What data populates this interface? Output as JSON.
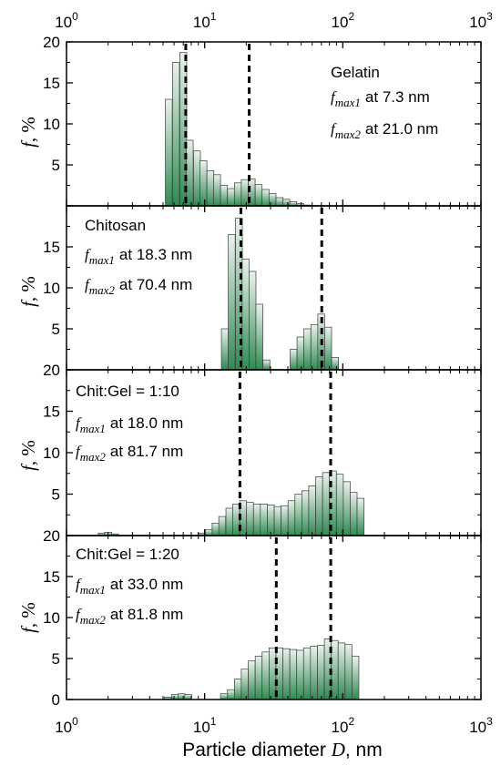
{
  "chart_data": {
    "type": "bar",
    "x_scale": "log",
    "xlim": [
      1,
      1000
    ],
    "ylim": [
      0,
      20
    ],
    "x_ticks": [
      1,
      10,
      100,
      1000
    ],
    "x_tick_labels": [
      {
        "base": "10",
        "exp": "0"
      },
      {
        "base": "10",
        "exp": "1"
      },
      {
        "base": "10",
        "exp": "2"
      },
      {
        "base": "10",
        "exp": "3"
      }
    ],
    "y_ticks": [
      0,
      5,
      10,
      15,
      20
    ],
    "y_tick_labels_top_panel": [
      "",
      "5",
      "10",
      "15",
      "20"
    ],
    "y_tick_labels_middle_panel": [
      "20",
      "5",
      "10",
      "15",
      ""
    ],
    "y_tick_labels_bottom_panel": [
      "0",
      "5",
      "10",
      "15",
      ""
    ],
    "ylabel": {
      "var": "f",
      "unit": ", %"
    },
    "xlabel": {
      "text": "Particle diameter ",
      "var": "D",
      "unit": ", nm"
    },
    "bin_ratio": 1.122,
    "colors": {
      "bar_light": "#eaf2ec",
      "bar_dark": "#2f8a52",
      "bar_stroke": "#3c3c3c",
      "axis": "#000000"
    },
    "panels": [
      {
        "title": "Gelatin",
        "peaks": [
          {
            "label": "max1",
            "value": "7.3 nm",
            "x": 7.3
          },
          {
            "label": "max2",
            "value": "21.0 nm",
            "x": 21.0
          }
        ],
        "bins": [
          {
            "x": 5.5,
            "y": 13.0
          },
          {
            "x": 6.2,
            "y": 17.5
          },
          {
            "x": 7.0,
            "y": 18.7
          },
          {
            "x": 7.8,
            "y": 8.0
          },
          {
            "x": 8.8,
            "y": 6.7
          },
          {
            "x": 9.8,
            "y": 5.5
          },
          {
            "x": 11.0,
            "y": 4.3
          },
          {
            "x": 12.3,
            "y": 3.8
          },
          {
            "x": 13.8,
            "y": 2.5
          },
          {
            "x": 15.5,
            "y": 2.1
          },
          {
            "x": 17.4,
            "y": 2.8
          },
          {
            "x": 19.5,
            "y": 3.2
          },
          {
            "x": 21.9,
            "y": 3.3
          },
          {
            "x": 24.6,
            "y": 2.6
          },
          {
            "x": 27.6,
            "y": 2.0
          },
          {
            "x": 31.0,
            "y": 1.5
          },
          {
            "x": 34.8,
            "y": 1.0
          },
          {
            "x": 39.0,
            "y": 0.8
          },
          {
            "x": 43.8,
            "y": 0.5
          },
          {
            "x": 49.1,
            "y": 0.3
          },
          {
            "x": 55.1,
            "y": 0.1
          }
        ]
      },
      {
        "title": "Chitosan",
        "peaks": [
          {
            "label": "max1",
            "value": "18.3 nm",
            "x": 18.3
          },
          {
            "label": "max2",
            "value": "70.4 nm",
            "x": 70.4
          }
        ],
        "bins": [
          {
            "x": 14.0,
            "y": 5.0
          },
          {
            "x": 15.7,
            "y": 16.5
          },
          {
            "x": 17.7,
            "y": 18.5
          },
          {
            "x": 19.8,
            "y": 13.5
          },
          {
            "x": 22.2,
            "y": 12.0
          },
          {
            "x": 24.9,
            "y": 8.0
          },
          {
            "x": 28.0,
            "y": 1.2
          },
          {
            "x": 44.0,
            "y": 2.5
          },
          {
            "x": 49.4,
            "y": 4.0
          },
          {
            "x": 55.4,
            "y": 5.0
          },
          {
            "x": 62.2,
            "y": 5.5
          },
          {
            "x": 69.8,
            "y": 6.8
          },
          {
            "x": 78.3,
            "y": 5.2
          },
          {
            "x": 87.9,
            "y": 1.5
          }
        ]
      },
      {
        "title": "Chit:Gel = 1:10",
        "peaks": [
          {
            "label": "max1",
            "value": "18.0 nm",
            "x": 18.0
          },
          {
            "label": "max2",
            "value": "81.7 nm",
            "x": 81.7
          }
        ],
        "bins": [
          {
            "x": 1.8,
            "y": 0.3
          },
          {
            "x": 2.0,
            "y": 0.4
          },
          {
            "x": 2.25,
            "y": 0.2
          },
          {
            "x": 9.5,
            "y": 0.3
          },
          {
            "x": 10.7,
            "y": 0.7
          },
          {
            "x": 12.0,
            "y": 1.5
          },
          {
            "x": 13.4,
            "y": 2.3
          },
          {
            "x": 15.1,
            "y": 3.3
          },
          {
            "x": 16.9,
            "y": 3.8
          },
          {
            "x": 19.0,
            "y": 4.2
          },
          {
            "x": 21.3,
            "y": 4.0
          },
          {
            "x": 23.9,
            "y": 3.8
          },
          {
            "x": 26.8,
            "y": 3.8
          },
          {
            "x": 30.1,
            "y": 3.7
          },
          {
            "x": 33.8,
            "y": 3.5
          },
          {
            "x": 37.9,
            "y": 3.6
          },
          {
            "x": 42.5,
            "y": 4.2
          },
          {
            "x": 47.7,
            "y": 5.0
          },
          {
            "x": 53.5,
            "y": 5.4
          },
          {
            "x": 60.0,
            "y": 6.0
          },
          {
            "x": 67.4,
            "y": 7.1
          },
          {
            "x": 75.6,
            "y": 7.6
          },
          {
            "x": 84.8,
            "y": 7.8
          },
          {
            "x": 95.2,
            "y": 7.4
          },
          {
            "x": 106.8,
            "y": 6.5
          },
          {
            "x": 119.8,
            "y": 5.2
          },
          {
            "x": 134.4,
            "y": 4.5
          }
        ]
      },
      {
        "title": "Chit:Gel = 1:20",
        "peaks": [
          {
            "label": "max1",
            "value": "33.0 nm",
            "x": 33.0
          },
          {
            "label": "max2",
            "value": "81.8 nm",
            "x": 81.8
          }
        ],
        "bins": [
          {
            "x": 5.4,
            "y": 0.3
          },
          {
            "x": 6.1,
            "y": 0.6
          },
          {
            "x": 6.8,
            "y": 0.7
          },
          {
            "x": 7.6,
            "y": 0.6
          },
          {
            "x": 13.8,
            "y": 0.7
          },
          {
            "x": 15.5,
            "y": 1.2
          },
          {
            "x": 17.4,
            "y": 2.5
          },
          {
            "x": 19.5,
            "y": 3.7
          },
          {
            "x": 21.9,
            "y": 4.7
          },
          {
            "x": 24.6,
            "y": 5.3
          },
          {
            "x": 27.6,
            "y": 5.8
          },
          {
            "x": 31.0,
            "y": 6.3
          },
          {
            "x": 34.8,
            "y": 6.3
          },
          {
            "x": 39.0,
            "y": 6.2
          },
          {
            "x": 43.8,
            "y": 6.1
          },
          {
            "x": 49.1,
            "y": 6.0
          },
          {
            "x": 55.1,
            "y": 6.3
          },
          {
            "x": 61.8,
            "y": 6.5
          },
          {
            "x": 69.4,
            "y": 6.6
          },
          {
            "x": 77.9,
            "y": 7.4
          },
          {
            "x": 87.4,
            "y": 7.2
          },
          {
            "x": 98.0,
            "y": 6.9
          },
          {
            "x": 110.0,
            "y": 6.7
          },
          {
            "x": 123.4,
            "y": 5.3
          }
        ]
      }
    ]
  }
}
